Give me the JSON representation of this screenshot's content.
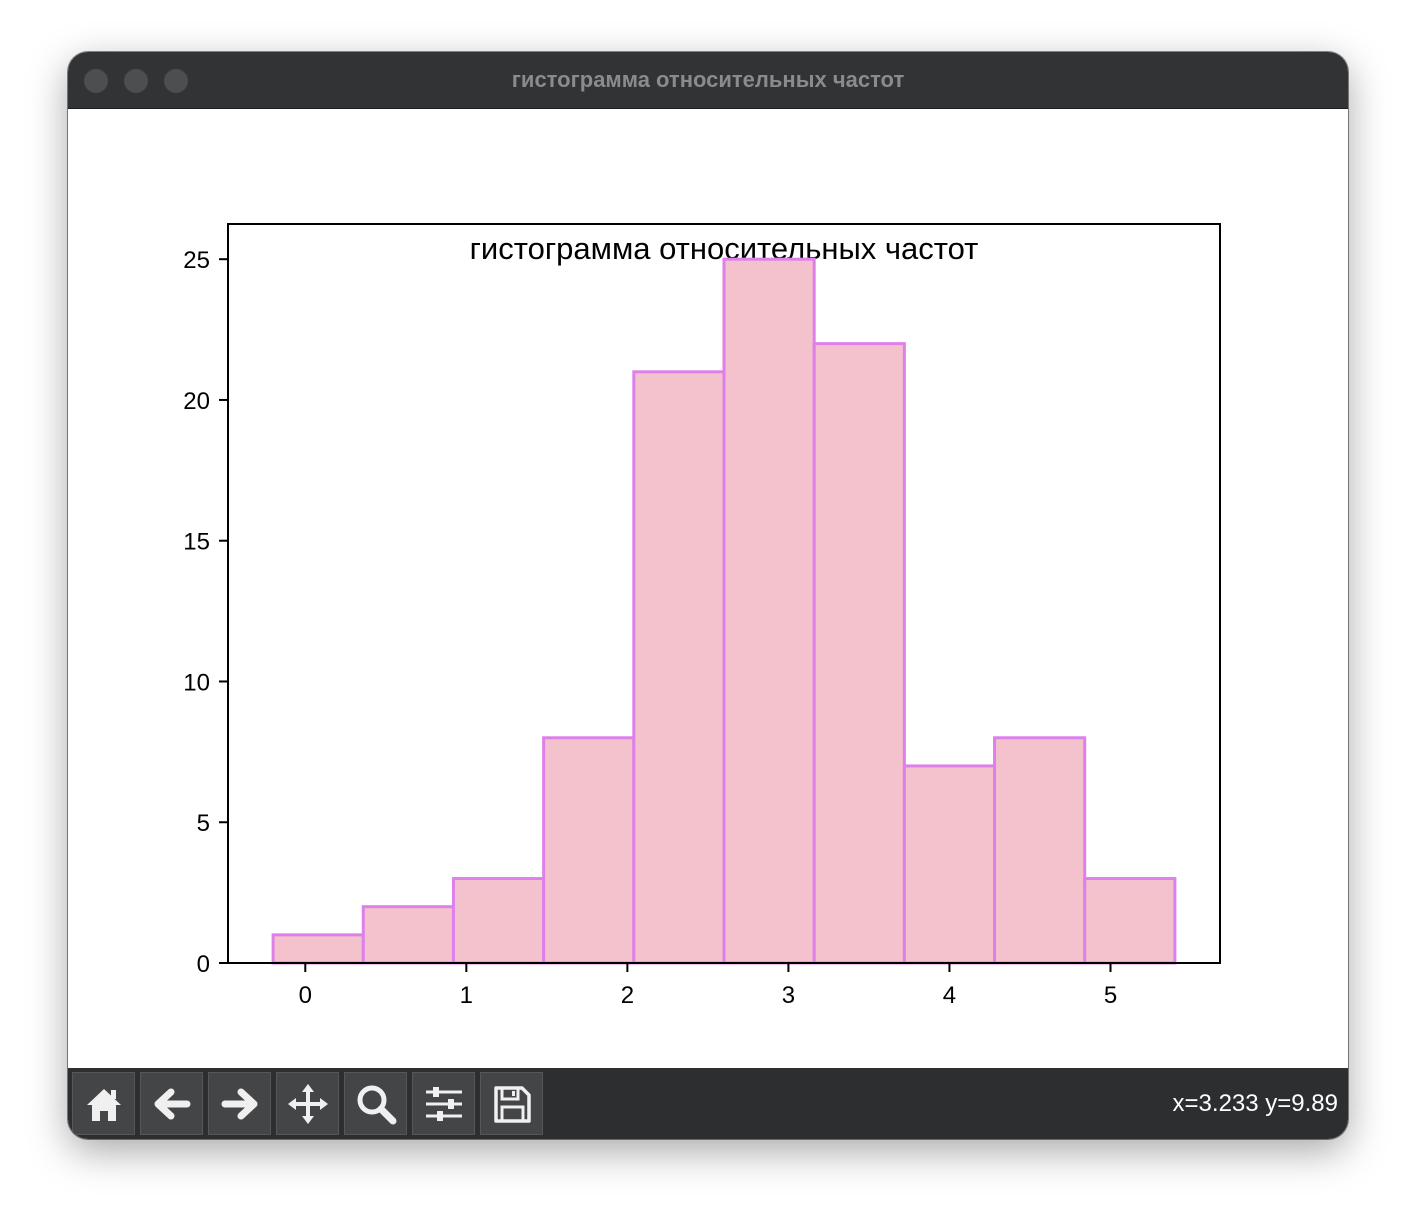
{
  "window": {
    "title": "гистограмма относительных частот"
  },
  "toolbar": {
    "buttons": [
      {
        "name": "home-icon",
        "label": "Home"
      },
      {
        "name": "back-arrow-icon",
        "label": "Back"
      },
      {
        "name": "forward-arrow-icon",
        "label": "Forward"
      },
      {
        "name": "pan-icon",
        "label": "Pan"
      },
      {
        "name": "zoom-icon",
        "label": "Zoom"
      },
      {
        "name": "configure-subplots-icon",
        "label": "Subplots"
      },
      {
        "name": "save-icon",
        "label": "Save"
      }
    ],
    "coords": "x=3.233 y=9.89"
  },
  "chart_data": {
    "type": "bar",
    "title": "гистограмма относительных частот",
    "xlabel": "",
    "ylabel": "",
    "bins": [
      [
        -0.2,
        0.36,
        1
      ],
      [
        0.36,
        0.92,
        2
      ],
      [
        0.92,
        1.48,
        3
      ],
      [
        1.48,
        2.04,
        8
      ],
      [
        2.04,
        2.6,
        21
      ],
      [
        2.6,
        3.16,
        25
      ],
      [
        3.16,
        3.72,
        22
      ],
      [
        3.72,
        4.28,
        7
      ],
      [
        4.28,
        4.84,
        8
      ],
      [
        4.84,
        5.4,
        3
      ]
    ],
    "xlim": [
      -0.48,
      5.68
    ],
    "ylim": [
      0,
      26.25
    ],
    "xticks": [
      "0",
      "1",
      "2",
      "3",
      "4",
      "5"
    ],
    "yticks": [
      "0",
      "5",
      "10",
      "15",
      "20",
      "25"
    ],
    "colors": {
      "fill": "#f4c2cc",
      "edge": "#dd80ea"
    },
    "grid": false
  }
}
